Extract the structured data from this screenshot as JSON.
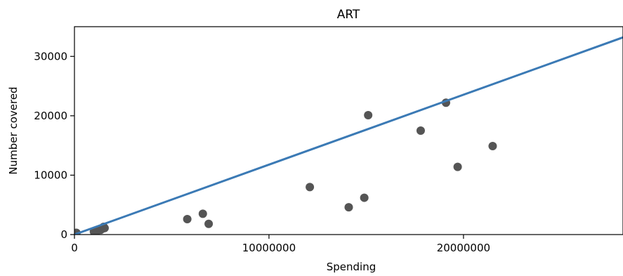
{
  "chart_data": {
    "type": "scatter",
    "title": "ART",
    "xlabel": "Spending",
    "ylabel": "Number covered",
    "xlim": [
      0,
      28200000
    ],
    "ylim": [
      0,
      35000
    ],
    "xticks": [
      0,
      10000000,
      20000000
    ],
    "xtick_labels": [
      "0",
      "10000000",
      "20000000"
    ],
    "yticks": [
      0,
      10000,
      20000,
      30000
    ],
    "ytick_labels": [
      "0",
      "10000",
      "20000",
      "30000"
    ],
    "grid": false,
    "point_color": "#555555",
    "line_color": "#3b7ab5",
    "points": [
      {
        "x": 100000,
        "y": 300
      },
      {
        "x": 1000000,
        "y": 500
      },
      {
        "x": 1200000,
        "y": 700
      },
      {
        "x": 1350000,
        "y": 800
      },
      {
        "x": 1450000,
        "y": 1000
      },
      {
        "x": 1500000,
        "y": 1300
      },
      {
        "x": 1550000,
        "y": 1100
      },
      {
        "x": 5800000,
        "y": 2600
      },
      {
        "x": 6600000,
        "y": 3500
      },
      {
        "x": 6900000,
        "y": 1800
      },
      {
        "x": 12100000,
        "y": 8000
      },
      {
        "x": 14100000,
        "y": 4600
      },
      {
        "x": 14900000,
        "y": 6200
      },
      {
        "x": 15100000,
        "y": 20100
      },
      {
        "x": 17800000,
        "y": 17500
      },
      {
        "x": 19100000,
        "y": 22200
      },
      {
        "x": 19700000,
        "y": 11400
      },
      {
        "x": 21500000,
        "y": 14900
      }
    ],
    "fit_line": {
      "x": [
        0,
        28200000
      ],
      "y": [
        0,
        33200
      ]
    }
  }
}
